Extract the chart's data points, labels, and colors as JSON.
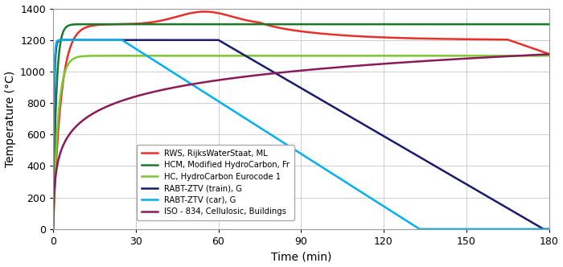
{
  "title": "",
  "xlabel": "Time (min)",
  "ylabel": "Temperature (°C)",
  "xlim": [
    0,
    180
  ],
  "ylim": [
    0,
    1400
  ],
  "xticks": [
    0,
    30,
    60,
    90,
    120,
    150,
    180
  ],
  "yticks": [
    0,
    200,
    400,
    600,
    800,
    1000,
    1200,
    1400
  ],
  "background_color": "#ffffff",
  "grid_color": "#c8c8c8",
  "curves": {
    "RWS": {
      "label": "RWS, RijksWaterStaat, ML",
      "color": "#e8302a",
      "lw": 1.8
    },
    "HCM": {
      "label": "HCM, Modified HydroCarbon, Fr",
      "color": "#1a7a2a",
      "lw": 1.8
    },
    "HC": {
      "label": "HC, HydroCarbon Eurocode 1",
      "color": "#7dc832",
      "lw": 1.8
    },
    "RABT_train": {
      "label": "RABT-ZTV (train), G",
      "color": "#1a1a6e",
      "lw": 1.8
    },
    "RABT_car": {
      "label": "RABT-ZTV (car), G",
      "color": "#00b0f0",
      "lw": 1.8
    },
    "ISO": {
      "label": "ISO - 834, Cellulosic, Buildings",
      "color": "#8b1a5a",
      "lw": 1.8
    }
  }
}
